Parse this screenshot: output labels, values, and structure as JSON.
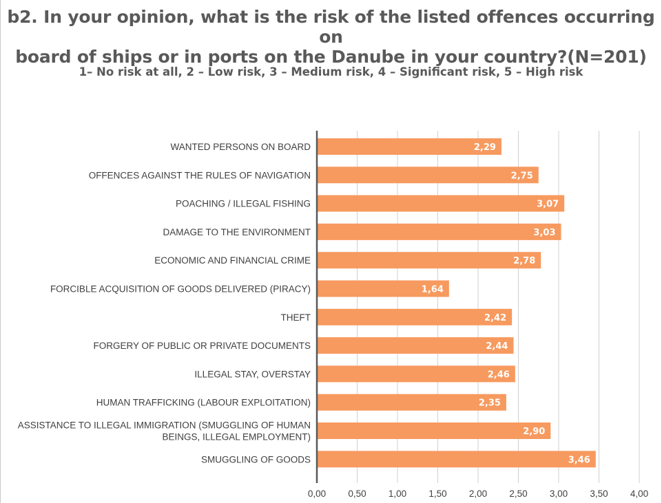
{
  "chart_data": {
    "type": "bar",
    "orientation": "horizontal",
    "title": "b2. In your opinion, what is the risk of the listed offences occurring on board of ships or in ports on the Danube in your country?(N=201)",
    "subtitle": "1– No risk at all, 2 – Low risk, 3 – Medium risk, 4 – Significant risk, 5 – High risk",
    "categories": [
      [
        "WANTED PERSONS ON BOARD"
      ],
      [
        "OFFENCES AGAINST THE RULES OF NAVIGATION"
      ],
      [
        "POACHING / ILLEGAL FISHING"
      ],
      [
        "DAMAGE TO THE ENVIRONMENT"
      ],
      [
        "ECONOMIC AND FINANCIAL CRIME"
      ],
      [
        "FORCIBLE ACQUISITION OF GOODS DELIVERED (PIRACY)"
      ],
      [
        "THEFT"
      ],
      [
        "FORGERY OF PUBLIC OR PRIVATE DOCUMENTS"
      ],
      [
        "ILLEGAL STAY, OVERSTAY"
      ],
      [
        "HUMAN TRAFFICKING (LABOUR EXPLOITATION)"
      ],
      [
        "ASSISTANCE TO ILLEGAL IMMIGRATION (SMUGGLING OF HUMAN",
        "BEINGS, ILLEGAL EMPLOYMENT)"
      ],
      [
        "SMUGGLING OF GOODS"
      ]
    ],
    "values": [
      2.29,
      2.75,
      3.07,
      3.03,
      2.78,
      1.64,
      2.42,
      2.44,
      2.46,
      2.35,
      2.9,
      3.46
    ],
    "data_labels": [
      "2,29",
      "2,75",
      "3,07",
      "3,03",
      "2,78",
      "1,64",
      "2,42",
      "2,44",
      "2,46",
      "2,35",
      "2,90",
      "3,46"
    ],
    "xlim": [
      0,
      4
    ],
    "x_ticks": [
      0,
      0.5,
      1,
      1.5,
      2,
      2.5,
      3,
      3.5,
      4
    ],
    "x_tick_labels": [
      "0,00",
      "0,50",
      "1,00",
      "1,50",
      "2,00",
      "2,50",
      "3,00",
      "3,50",
      "4,00"
    ],
    "grid": true,
    "legend": false,
    "colors": {
      "bar": "#F79A5F",
      "bar_label": "#ffffff",
      "axis": "#595959",
      "grid": "#d0d0d0",
      "text": "#404040"
    }
  }
}
